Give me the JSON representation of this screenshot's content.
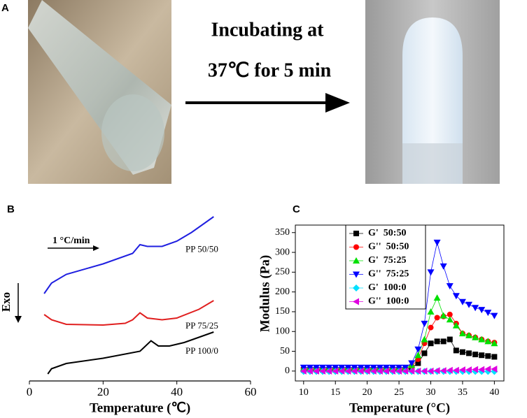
{
  "figure": {
    "panel_a": "A",
    "panel_b": "B",
    "panel_c": "C",
    "arrow_text_1": "Incubating at",
    "arrow_text_2": "37℃ for 5 min"
  },
  "chart_data": [
    {
      "type": "line",
      "xlabel": "Temperature (℃)",
      "ylabel": "Exo",
      "annotation": "1 °C/min",
      "xlim": [
        0,
        60
      ],
      "xticks": [
        0,
        20,
        40,
        60
      ],
      "ylim": [
        0,
        100
      ],
      "series": [
        {
          "name": "PP 50/50",
          "color": "#1f1fe0",
          "x": [
            4,
            6,
            10,
            20,
            28,
            30,
            32,
            36,
            40,
            44,
            48,
            50
          ],
          "values": [
            50,
            56,
            61,
            67,
            73,
            78,
            77,
            77,
            80,
            85,
            91,
            94
          ]
        },
        {
          "name": "PP 75/25",
          "color": "#e01f1f",
          "x": [
            4,
            6,
            10,
            20,
            26,
            28,
            30,
            32,
            36,
            40,
            46,
            50
          ],
          "values": [
            38,
            35,
            32.4,
            32,
            33,
            35,
            39,
            36,
            35,
            36,
            41,
            46
          ]
        },
        {
          "name": "PP 100/0",
          "color": "#000000",
          "x": [
            5,
            6,
            10,
            20,
            30,
            31,
            33,
            35,
            38,
            42,
            46,
            50
          ],
          "values": [
            4,
            7,
            10,
            13,
            17,
            19,
            23,
            20,
            20,
            22,
            25,
            28
          ]
        }
      ]
    },
    {
      "type": "line",
      "xlabel": "Temperature (°C)",
      "ylabel": "Modulus (Pa)",
      "legend": "upper left",
      "xlim": [
        8.7,
        41.5
      ],
      "xticks": [
        10,
        15,
        20,
        25,
        30,
        35,
        40
      ],
      "ylim": [
        -25,
        369
      ],
      "yticks": [
        0,
        50,
        100,
        150,
        200,
        250,
        300,
        350
      ],
      "x": [
        10,
        11,
        12,
        13,
        14,
        15,
        16,
        17,
        18,
        19,
        20,
        21,
        22,
        23,
        24,
        25,
        26,
        27,
        28,
        29,
        30,
        31,
        32,
        33,
        34,
        35,
        36,
        37,
        38,
        39,
        40
      ],
      "series": [
        {
          "name": "G'  50:50",
          "color": "#000000",
          "marker": "square",
          "values": [
            3,
            3,
            3,
            3,
            3,
            3,
            3,
            3,
            3,
            3,
            3,
            3,
            3,
            3,
            3,
            3,
            3,
            8,
            20,
            45,
            70,
            75,
            75,
            80,
            52,
            48,
            45,
            42,
            40,
            38,
            36
          ]
        },
        {
          "name": "G''  50:50",
          "color": "#ff0000",
          "marker": "circle",
          "values": [
            5,
            5,
            5,
            5,
            5,
            5,
            5,
            5,
            5,
            5,
            5,
            5,
            5,
            5,
            5,
            5,
            5,
            12,
            30,
            70,
            110,
            135,
            138,
            143,
            120,
            95,
            90,
            85,
            80,
            75,
            72
          ]
        },
        {
          "name": "G'  75:25",
          "color": "#00e000",
          "marker": "triangle-up",
          "values": [
            7,
            7,
            7,
            7,
            7,
            7,
            7,
            7,
            7,
            7,
            7,
            7,
            7,
            7,
            7,
            7,
            7,
            15,
            40,
            80,
            150,
            185,
            140,
            130,
            115,
            95,
            90,
            85,
            80,
            75,
            70
          ]
        },
        {
          "name": "G''  75:25",
          "color": "#0000ff",
          "marker": "triangle-down",
          "values": [
            9,
            9,
            9,
            9,
            9,
            9,
            9,
            9,
            9,
            9,
            9,
            9,
            9,
            9,
            9,
            9,
            9,
            20,
            55,
            120,
            250,
            325,
            265,
            215,
            190,
            175,
            168,
            160,
            155,
            148,
            140
          ]
        },
        {
          "name": "G'  100:0",
          "color": "#00e0ff",
          "marker": "diamond",
          "values": [
            -1,
            -1,
            -1,
            -1,
            -1,
            -1,
            -1,
            -1,
            -1,
            -1,
            -1,
            -1,
            -1,
            -1,
            -1,
            -1,
            -1,
            -1,
            -1,
            -1,
            -1,
            -1,
            -1,
            -1,
            -1,
            -1,
            -1,
            -1,
            -1,
            -1,
            -1
          ]
        },
        {
          "name": "G''  100:0",
          "color": "#e000e0",
          "marker": "triangle-left",
          "values": [
            0,
            0,
            0,
            0,
            0,
            0,
            0,
            0,
            0,
            0,
            0,
            0,
            0,
            0,
            0,
            0,
            0,
            0,
            0,
            0,
            0,
            1,
            1,
            2,
            2,
            3,
            3,
            4,
            4,
            5,
            5
          ]
        }
      ]
    }
  ]
}
